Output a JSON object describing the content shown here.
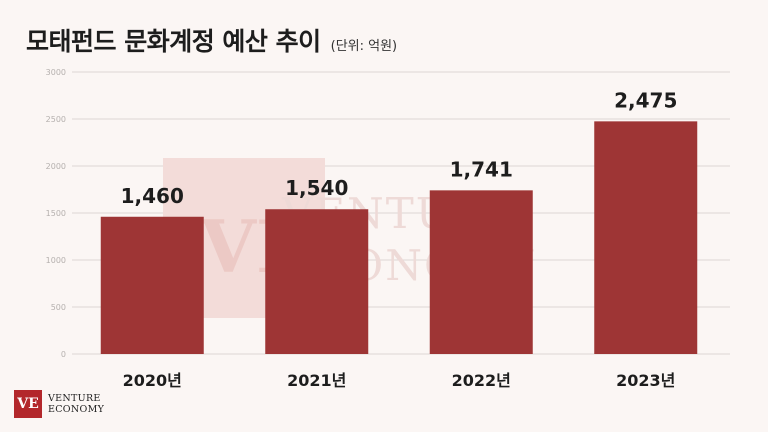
{
  "header": {
    "title": "모태펀드 문화계정 예산 추이",
    "unit": "(단위: 억원)"
  },
  "chart_data": {
    "type": "bar",
    "categories": [
      "2020년",
      "2021년",
      "2022년",
      "2023년"
    ],
    "values": [
      1460,
      1540,
      1741,
      2475
    ],
    "value_labels": [
      "1,460",
      "1,540",
      "1,741",
      "2,475"
    ],
    "ylim": [
      0,
      3000
    ],
    "yticks": [
      0,
      500,
      1000,
      1500,
      2000,
      2500,
      3000
    ],
    "grid": true,
    "bar_color": "#9e3535"
  },
  "watermark": {
    "line1": "VENTURE",
    "line2": "ECONOMY"
  },
  "logo": {
    "mark": "VE",
    "line1": "VENTURE",
    "line2": "ECONOMY"
  }
}
